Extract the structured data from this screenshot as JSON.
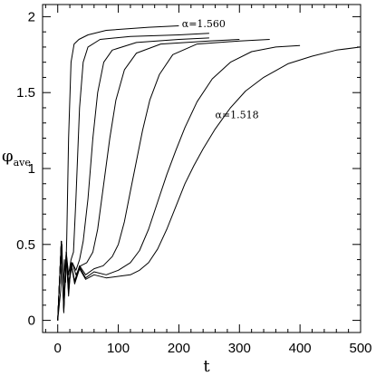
{
  "chart_data": {
    "type": "line",
    "title": "",
    "xlabel": "t",
    "ylabel": "φ",
    "ylabel_subscript": "ave",
    "xlim": [
      -25,
      500
    ],
    "ylim": [
      -0.08,
      2.08
    ],
    "x_ticks": [
      0,
      100,
      200,
      300,
      400,
      500
    ],
    "x_tick_labels": [
      "0",
      "100",
      "200",
      "300",
      "400",
      "500"
    ],
    "y_ticks": [
      0,
      0.5,
      1,
      1.5,
      2
    ],
    "y_tick_labels": [
      "0",
      "0.5",
      "1",
      "1.5",
      "2"
    ],
    "grid": false,
    "legend": "none",
    "line_color": "#000000",
    "annotations": [
      {
        "text": "α=1.560",
        "x": 205,
        "y": 1.93
      },
      {
        "text": "α=1.518",
        "x": 260,
        "y": 1.33
      }
    ],
    "series": [
      {
        "values": [
          [
            0,
            0
          ],
          [
            5,
            0.2
          ],
          [
            7,
            0.5
          ],
          [
            9,
            0.18
          ],
          [
            11,
            0.4
          ],
          [
            13,
            0.25
          ],
          [
            15,
            0.55
          ],
          [
            18,
            1.2
          ],
          [
            22,
            1.7
          ],
          [
            27,
            1.82
          ],
          [
            35,
            1.85
          ],
          [
            50,
            1.88
          ],
          [
            80,
            1.91
          ],
          [
            150,
            1.93
          ],
          [
            200,
            1.94
          ]
        ]
      },
      {
        "values": [
          [
            0,
            0
          ],
          [
            6,
            0.52
          ],
          [
            10,
            0.1
          ],
          [
            14,
            0.45
          ],
          [
            18,
            0.3
          ],
          [
            22,
            0.4
          ],
          [
            26,
            0.45
          ],
          [
            30,
            0.8
          ],
          [
            36,
            1.4
          ],
          [
            42,
            1.7
          ],
          [
            50,
            1.8
          ],
          [
            70,
            1.85
          ],
          [
            120,
            1.87
          ],
          [
            200,
            1.88
          ],
          [
            250,
            1.89
          ]
        ]
      },
      {
        "values": [
          [
            0,
            0
          ],
          [
            6,
            0.52
          ],
          [
            10,
            0.1
          ],
          [
            14,
            0.45
          ],
          [
            18,
            0.25
          ],
          [
            24,
            0.38
          ],
          [
            30,
            0.33
          ],
          [
            36,
            0.4
          ],
          [
            42,
            0.52
          ],
          [
            50,
            0.8
          ],
          [
            58,
            1.2
          ],
          [
            66,
            1.5
          ],
          [
            76,
            1.7
          ],
          [
            90,
            1.78
          ],
          [
            130,
            1.83
          ],
          [
            200,
            1.85
          ],
          [
            250,
            1.86
          ]
        ]
      },
      {
        "values": [
          [
            0,
            0
          ],
          [
            6,
            0.52
          ],
          [
            10,
            0.08
          ],
          [
            14,
            0.45
          ],
          [
            18,
            0.22
          ],
          [
            24,
            0.38
          ],
          [
            30,
            0.3
          ],
          [
            38,
            0.36
          ],
          [
            48,
            0.38
          ],
          [
            58,
            0.45
          ],
          [
            66,
            0.6
          ],
          [
            76,
            0.9
          ],
          [
            86,
            1.2
          ],
          [
            96,
            1.45
          ],
          [
            110,
            1.65
          ],
          [
            130,
            1.76
          ],
          [
            170,
            1.82
          ],
          [
            250,
            1.84
          ],
          [
            300,
            1.85
          ]
        ]
      },
      {
        "values": [
          [
            0,
            0
          ],
          [
            6,
            0.52
          ],
          [
            10,
            0.08
          ],
          [
            14,
            0.42
          ],
          [
            18,
            0.2
          ],
          [
            22,
            0.38
          ],
          [
            28,
            0.26
          ],
          [
            36,
            0.36
          ],
          [
            46,
            0.3
          ],
          [
            60,
            0.34
          ],
          [
            75,
            0.36
          ],
          [
            90,
            0.42
          ],
          [
            100,
            0.5
          ],
          [
            110,
            0.65
          ],
          [
            120,
            0.85
          ],
          [
            130,
            1.05
          ],
          [
            140,
            1.25
          ],
          [
            152,
            1.45
          ],
          [
            168,
            1.62
          ],
          [
            190,
            1.75
          ],
          [
            230,
            1.82
          ],
          [
            300,
            1.84
          ],
          [
            350,
            1.85
          ]
        ]
      },
      {
        "values": [
          [
            0,
            0
          ],
          [
            6,
            0.52
          ],
          [
            10,
            0.06
          ],
          [
            14,
            0.42
          ],
          [
            18,
            0.18
          ],
          [
            22,
            0.38
          ],
          [
            28,
            0.25
          ],
          [
            36,
            0.35
          ],
          [
            46,
            0.28
          ],
          [
            60,
            0.32
          ],
          [
            80,
            0.3
          ],
          [
            100,
            0.33
          ],
          [
            120,
            0.38
          ],
          [
            135,
            0.46
          ],
          [
            150,
            0.6
          ],
          [
            165,
            0.78
          ],
          [
            180,
            0.96
          ],
          [
            195,
            1.12
          ],
          [
            210,
            1.27
          ],
          [
            230,
            1.44
          ],
          [
            255,
            1.59
          ],
          [
            285,
            1.7
          ],
          [
            320,
            1.77
          ],
          [
            360,
            1.8
          ],
          [
            400,
            1.81
          ]
        ]
      },
      {
        "values": [
          [
            0,
            0
          ],
          [
            6,
            0.52
          ],
          [
            10,
            0.05
          ],
          [
            14,
            0.42
          ],
          [
            18,
            0.16
          ],
          [
            22,
            0.38
          ],
          [
            28,
            0.24
          ],
          [
            36,
            0.34
          ],
          [
            46,
            0.27
          ],
          [
            60,
            0.3
          ],
          [
            80,
            0.28
          ],
          [
            100,
            0.29
          ],
          [
            120,
            0.3
          ],
          [
            135,
            0.33
          ],
          [
            150,
            0.38
          ],
          [
            165,
            0.47
          ],
          [
            180,
            0.6
          ],
          [
            195,
            0.75
          ],
          [
            210,
            0.9
          ],
          [
            225,
            1.02
          ],
          [
            240,
            1.13
          ],
          [
            260,
            1.26
          ],
          [
            285,
            1.4
          ],
          [
            310,
            1.51
          ],
          [
            340,
            1.6
          ],
          [
            380,
            1.69
          ],
          [
            420,
            1.74
          ],
          [
            460,
            1.78
          ],
          [
            500,
            1.8
          ]
        ]
      }
    ]
  }
}
